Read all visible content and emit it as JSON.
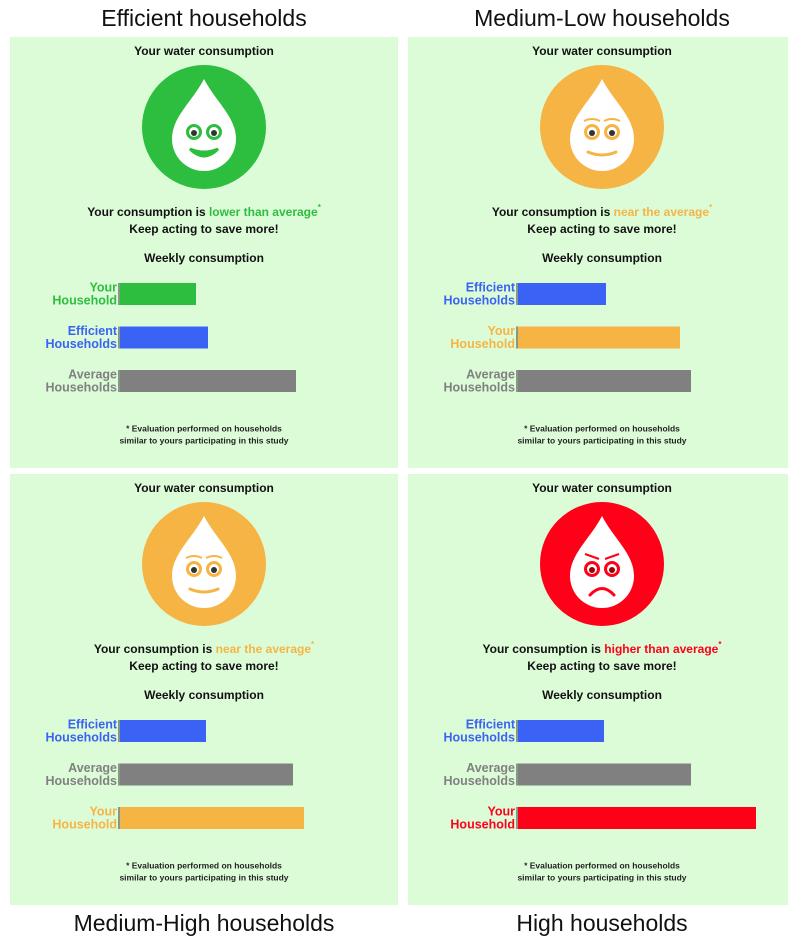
{
  "panels": [
    {
      "caption": "Efficient households",
      "header": "Your water consumption",
      "face_color": "#2dbe3f",
      "mood": "happy",
      "message": {
        "prefix": "Your consumption is ",
        "highlight": "lower than average",
        "mark": "*",
        "second": "Keep acting to save more!"
      },
      "chart_data": {
        "type": "bar",
        "title": "Weekly consumption",
        "categories": [
          [
            "Your",
            "Household"
          ],
          [
            "Efficient",
            "Households"
          ],
          [
            "Average",
            "Households"
          ]
        ],
        "values": [
          76,
          88,
          176
        ],
        "colors": [
          "#2dbe3f",
          "#3a62f5",
          "#808080"
        ]
      },
      "footnote": [
        "* Evaluation performed on households",
        "similar to yours participating in this study"
      ]
    },
    {
      "caption": "Medium-Low households",
      "header": "Your water consumption",
      "face_color": "#f6b444",
      "mood": "neutral",
      "message": {
        "prefix": "Your consumption is ",
        "highlight": "near the average",
        "mark": "*",
        "second": "Keep acting to save more!"
      },
      "chart_data": {
        "type": "bar",
        "title": "Weekly consumption",
        "categories": [
          [
            "Efficient",
            "Households"
          ],
          [
            "Your",
            "Household"
          ],
          [
            "Average",
            "Households"
          ]
        ],
        "values": [
          88,
          162,
          173
        ],
        "colors": [
          "#3a62f5",
          "#f6b444",
          "#808080"
        ]
      },
      "footnote": [
        "* Evaluation performed on households",
        "similar to yours participating in this study"
      ]
    },
    {
      "caption": "Medium-High households",
      "header": "Your water consumption",
      "face_color": "#f6b444",
      "mood": "neutral",
      "message": {
        "prefix": "Your consumption is ",
        "highlight": "near the average",
        "mark": "*",
        "second": "Keep acting to save more!"
      },
      "chart_data": {
        "type": "bar",
        "title": "Weekly consumption",
        "categories": [
          [
            "Efficient",
            "Households"
          ],
          [
            "Average",
            "Households"
          ],
          [
            "Your",
            "Household"
          ]
        ],
        "values": [
          86,
          173,
          184
        ],
        "colors": [
          "#3a62f5",
          "#808080",
          "#f6b444"
        ]
      },
      "footnote": [
        "* Evaluation performed on households",
        "similar to yours participating in this study"
      ]
    },
    {
      "caption": "High households",
      "header": "Your water consumption",
      "face_color": "#ff0019",
      "mood": "sad",
      "message": {
        "prefix": "Your consumption is ",
        "highlight": "higher than average",
        "mark": "*",
        "second": "Keep acting to save more!"
      },
      "chart_data": {
        "type": "bar",
        "title": "Weekly consumption",
        "categories": [
          [
            "Efficient",
            "Households"
          ],
          [
            "Average",
            "Households"
          ],
          [
            "Your",
            "Household"
          ]
        ],
        "values": [
          86,
          173,
          238
        ],
        "colors": [
          "#3a62f5",
          "#808080",
          "#ff0019"
        ]
      },
      "footnote": [
        "* Evaluation performed on households",
        "similar to yours participating in this study"
      ]
    }
  ]
}
